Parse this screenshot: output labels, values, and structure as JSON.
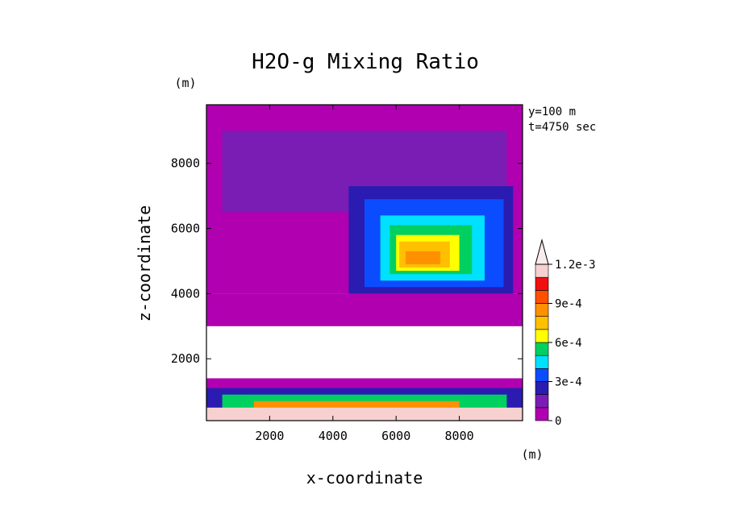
{
  "chart_data": {
    "type": "heatmap",
    "title": "H2O-g Mixing Ratio",
    "xlabel": "x-coordinate",
    "ylabel": "z-coordinate",
    "x_unit": "(m)",
    "y_unit": "(m)",
    "annotations": [
      "y=100 m",
      "t=4750 sec"
    ],
    "xlim": [
      0,
      10000
    ],
    "ylim": [
      100,
      9800
    ],
    "xticks": [
      2000,
      4000,
      6000,
      8000
    ],
    "yticks": [
      2000,
      4000,
      6000,
      8000
    ],
    "xtick_labels": [
      "2000",
      "4000",
      "6000",
      "8000"
    ],
    "ytick_labels": [
      "2000",
      "4000",
      "6000",
      "8000"
    ],
    "colorbar": {
      "levels": [
        0,
        0.0001,
        0.0002,
        0.0003,
        0.0004,
        0.0005,
        0.0006,
        0.0007,
        0.0008,
        0.0009,
        0.001,
        0.0011,
        0.0012
      ],
      "labels": [
        "0",
        "3e-4",
        "6e-4",
        "9e-4",
        "1.2e-3"
      ],
      "label_values": [
        0,
        0.0003,
        0.0006,
        0.0009,
        0.0012
      ],
      "colors": [
        "#b000b0",
        "#7a1db5",
        "#2a1cb0",
        "#0b4cff",
        "#00e0ff",
        "#00d060",
        "#ffff00",
        "#ffc000",
        "#ff9000",
        "#ff5000",
        "#f01010",
        "#f7d0d0"
      ],
      "extend": "max"
    },
    "regions": [
      {
        "level": 0,
        "x": [
          0,
          10000
        ],
        "z": [
          4000,
          9800
        ]
      },
      {
        "level": 1,
        "x": [
          500,
          9500
        ],
        "z": [
          6500,
          9000
        ]
      },
      {
        "level": 2,
        "x": [
          4500,
          9700
        ],
        "z": [
          4000,
          7300
        ]
      },
      {
        "level": 3,
        "x": [
          5000,
          9400
        ],
        "z": [
          4200,
          6900
        ]
      },
      {
        "level": 4,
        "x": [
          5500,
          8800
        ],
        "z": [
          4400,
          6400
        ]
      },
      {
        "level": 5,
        "x": [
          5800,
          8400
        ],
        "z": [
          4600,
          6100
        ]
      },
      {
        "level": 6,
        "x": [
          6000,
          8000
        ],
        "z": [
          4700,
          5800
        ]
      },
      {
        "level": 7,
        "x": [
          6100,
          7700
        ],
        "z": [
          4800,
          5600
        ]
      },
      {
        "level": 8,
        "x": [
          6300,
          7400
        ],
        "z": [
          4900,
          5300
        ]
      },
      {
        "level": 0,
        "x": [
          0,
          10000
        ],
        "z": [
          3000,
          4000
        ]
      },
      {
        "level": 0,
        "x": [
          0,
          10000
        ],
        "z": [
          100,
          1400
        ]
      },
      {
        "level": 2,
        "x": [
          0,
          10000
        ],
        "z": [
          100,
          1100
        ]
      },
      {
        "level": 5,
        "x": [
          500,
          9500
        ],
        "z": [
          100,
          900
        ]
      },
      {
        "level": 8,
        "x": [
          1500,
          8000
        ],
        "z": [
          100,
          700
        ]
      },
      {
        "level": 11,
        "x": [
          0,
          10000
        ],
        "z": [
          100,
          500
        ]
      }
    ]
  }
}
